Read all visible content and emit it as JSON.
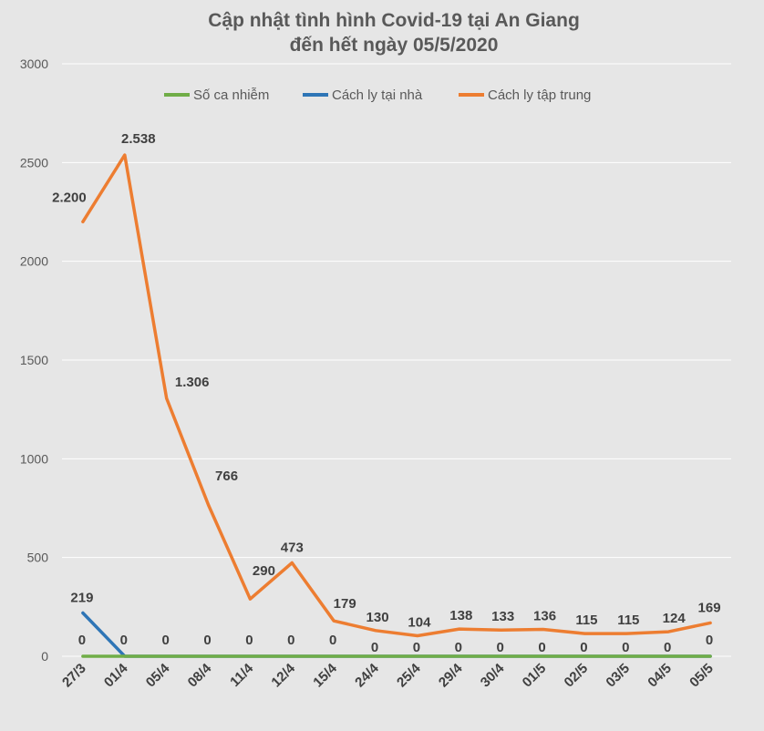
{
  "chart_data": {
    "type": "line",
    "title_line1": "Cập nhật tình hình Covid-19  tại An Giang",
    "title_line2": "đến hết ngày 05/5/2020",
    "categories": [
      "27/3",
      "01/4",
      "05/4",
      "08/4",
      "11/4",
      "12/4",
      "15/4",
      "24/4",
      "25/4",
      "29/4",
      "30/4",
      "01/5",
      "02/5",
      "03/5",
      "04/5",
      "05/5"
    ],
    "ylim": [
      0,
      3000
    ],
    "yticks": [
      0,
      500,
      1000,
      1500,
      2000,
      2500,
      3000
    ],
    "grid": true,
    "legend_position": "top",
    "series": [
      {
        "name": "Số ca nhiễm",
        "color": "#70ad47",
        "values": [
          0,
          0,
          0,
          0,
          0,
          0,
          0,
          0,
          0,
          0,
          0,
          0,
          0,
          0,
          0,
          0
        ],
        "labels": [
          "0",
          "0",
          "0",
          "0",
          "0",
          "0",
          "0",
          "0",
          "0",
          "0",
          "0",
          "0",
          "0",
          "0",
          "0",
          "0"
        ]
      },
      {
        "name": "Cách ly tại nhà",
        "color": "#2e75b6",
        "values": [
          219,
          0,
          0,
          0,
          0,
          0,
          0,
          0,
          0,
          0,
          0,
          0,
          0,
          0,
          0,
          0
        ],
        "labels": [
          "219",
          "",
          "",
          "",
          "",
          "",
          "",
          "",
          "",
          "",
          "",
          "",
          "",
          "",
          "",
          ""
        ]
      },
      {
        "name": "Cách ly tập trung",
        "color": "#ed7d31",
        "values": [
          2200,
          2538,
          1306,
          766,
          290,
          473,
          179,
          130,
          104,
          138,
          133,
          136,
          115,
          115,
          124,
          169
        ],
        "labels": [
          "2.200",
          "2.538",
          "1.306",
          "766",
          "290",
          "473",
          "179",
          "130",
          "104",
          "138",
          "133",
          "136",
          "115",
          "115",
          "124",
          "169"
        ]
      }
    ]
  }
}
